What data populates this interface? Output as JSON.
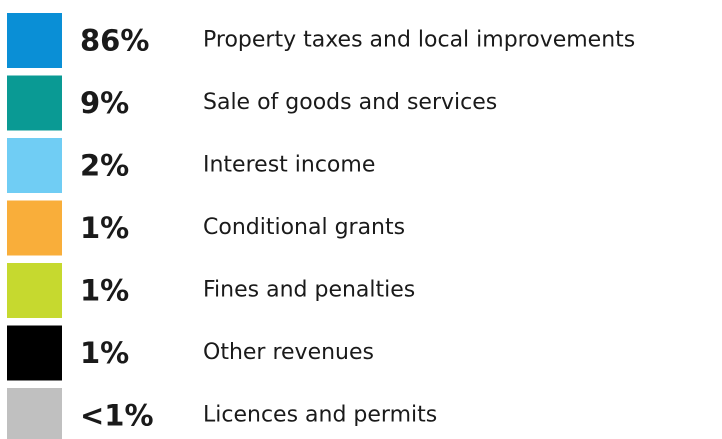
{
  "legend": {
    "items": [
      {
        "percent": "86%",
        "label": "Property taxes and local improvements",
        "color": "#0a8fd6"
      },
      {
        "percent": "9%",
        "label": "Sale of goods and services",
        "color": "#0a9a94"
      },
      {
        "percent": "2%",
        "label": "Interest income",
        "color": "#70cdf4"
      },
      {
        "percent": "1%",
        "label": "Conditional grants",
        "color": "#f9ae3a"
      },
      {
        "percent": "1%",
        "label": "Fines and penalties",
        "color": "#c6d92f"
      },
      {
        "percent": "1%",
        "label": "Other revenues",
        "color": "#000000"
      },
      {
        "percent": "<1%",
        "label": "Licences and permits",
        "color": "#c0c0c0"
      }
    ]
  }
}
